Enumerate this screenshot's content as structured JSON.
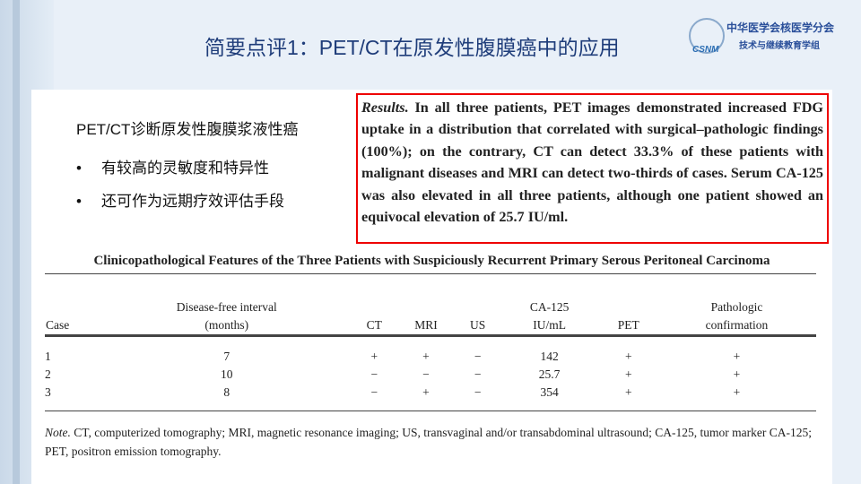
{
  "title": "简要点评1：PET/CT在原发性腹膜癌中的应用",
  "logo": {
    "line1": "中华医学会核医学分会",
    "line2": "技术与继续教育学组",
    "mark": "CSNM"
  },
  "left": {
    "heading": "PET/CT诊断原发性腹膜浆液性癌",
    "bullets": [
      "有较高的灵敏度和特异性",
      "还可作为远期疗效评估手段"
    ],
    "bullet_symbol": "•"
  },
  "results": {
    "label": "Results.",
    "text": "In all three patients, PET images demonstrated increased FDG uptake in a distribution that correlated with surgical–pathologic findings (100%); on the contrary, CT can detect 33.3% of these patients with malignant diseases and MRI can detect two-thirds of cases. Serum CA-125 was also elevated in all three patients, although one patient showed an equivocal elevation of 25.7 IU/ml.",
    "border_color": "#e00000"
  },
  "table": {
    "caption": "Clinicopathological Features of the Three Patients with Suspiciously Recurrent Primary Serous Peritoneal Carcinoma",
    "headers": [
      [
        "",
        "Case"
      ],
      [
        "Disease-free interval",
        "(months)"
      ],
      [
        "",
        "CT"
      ],
      [
        "",
        "MRI"
      ],
      [
        "",
        "US"
      ],
      [
        "CA-125",
        "IU/mL"
      ],
      [
        "",
        "PET"
      ],
      [
        "Pathologic",
        "confirmation"
      ]
    ],
    "rows": [
      [
        "1",
        "7",
        "+",
        "+",
        "−",
        "142",
        "+",
        "+"
      ],
      [
        "2",
        "10",
        "−",
        "−",
        "−",
        "25.7",
        "+",
        "+"
      ],
      [
        "3",
        "8",
        "−",
        "+",
        "−",
        "354",
        "+",
        "+"
      ]
    ],
    "note_label": "Note.",
    "note": "CT, computerized tomography; MRI, magnetic resonance imaging; US, transvaginal and/or transabdominal ultrasound; CA-125, tumor marker CA-125; PET, positron emission tomography."
  }
}
